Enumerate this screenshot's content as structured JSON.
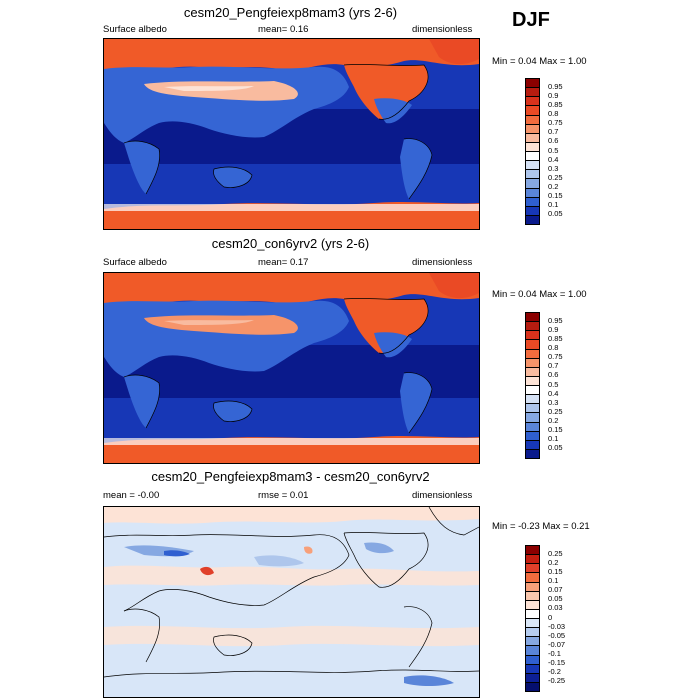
{
  "season": "DJF",
  "panels": [
    {
      "title": "cesm20_Pengfeiexp8mam3 (yrs 2-6)",
      "left_label": "Surface albedo",
      "center_label": "mean=  0.16",
      "right_label": "dimensionless",
      "minmax": "Min =  0.04 Max =   1.00",
      "colorbar_ticks": [
        "0.95",
        "0.9",
        "0.85",
        "0.8",
        "0.75",
        "0.7",
        "0.6",
        "0.5",
        "0.4",
        "0.3",
        "0.25",
        "0.2",
        "0.15",
        "0.1",
        "0.05"
      ]
    },
    {
      "title": "cesm20_con6yrv2 (yrs 2-6)",
      "left_label": "Surface albedo",
      "center_label": "mean=  0.17",
      "right_label": "dimensionless",
      "minmax": "Min =  0.04 Max =   1.00",
      "colorbar_ticks": [
        "0.95",
        "0.9",
        "0.85",
        "0.8",
        "0.75",
        "0.7",
        "0.6",
        "0.5",
        "0.4",
        "0.3",
        "0.25",
        "0.2",
        "0.15",
        "0.1",
        "0.05"
      ]
    },
    {
      "title": "cesm20_Pengfeiexp8mam3 - cesm20_con6yrv2",
      "left_label": "mean =  -0.00",
      "center_label": "rmse =   0.01",
      "right_label": "dimensionless",
      "minmax": "Min =  -0.23 Max =   0.21",
      "colorbar_ticks": [
        "0.25",
        "0.2",
        "0.15",
        "0.1",
        "0.07",
        "0.05",
        "0.03",
        "0",
        "-0.03",
        "-0.05",
        "-0.07",
        "-0.1",
        "-0.15",
        "-0.2",
        "-0.25"
      ]
    }
  ],
  "colors": {
    "abs_scale": [
      "#8b0000",
      "#b71c10",
      "#d8321c",
      "#ea4a25",
      "#f26c3e",
      "#f6946a",
      "#f9bb9f",
      "#fde3d6",
      "#ffffff",
      "#d6e2f5",
      "#aec6ec",
      "#86a8e2",
      "#5a85d9",
      "#2f5fd0",
      "#1737b6",
      "#0a1a8c"
    ],
    "diff_scale": [
      "#8b0000",
      "#c41e10",
      "#e0402a",
      "#f26c3e",
      "#f7a07a",
      "#fac8ae",
      "#fde3d6",
      "#ffffff",
      "#dbe8f8",
      "#b6cdf0",
      "#86a8e2",
      "#5a85d9",
      "#2f5fd0",
      "#1737b6",
      "#0d1f94",
      "#050f6e"
    ],
    "ocean_deep": "#0a1a8c",
    "ocean_mid": "#1737b6",
    "snow": "#f05a28",
    "land_low": "#3565d4",
    "diff_bg": "#d8e6f8",
    "diff_warm": "#fde3d6"
  }
}
